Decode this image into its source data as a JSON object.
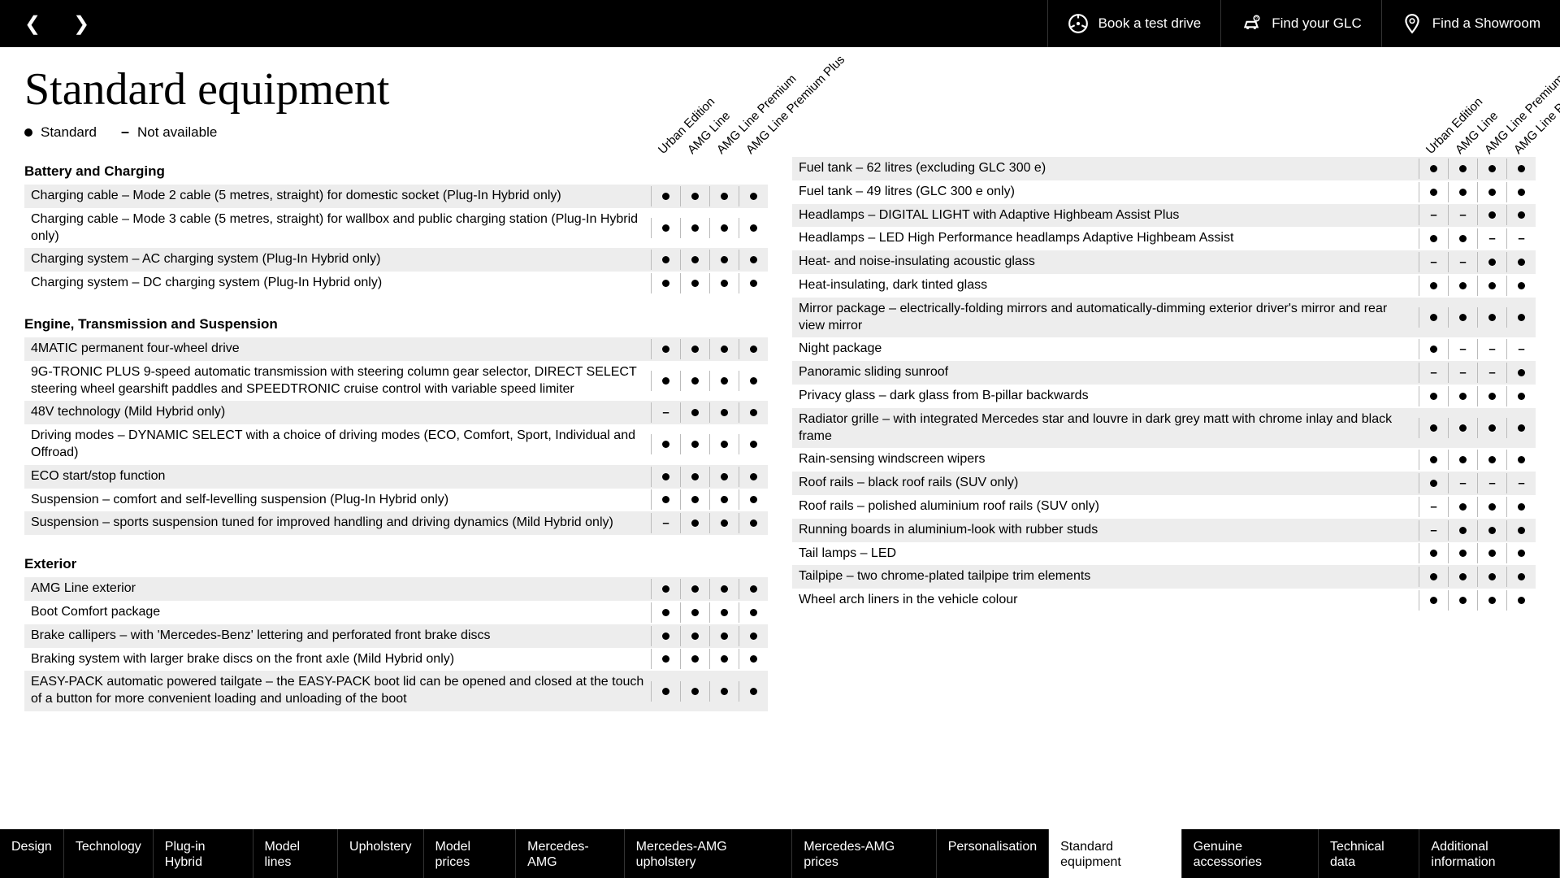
{
  "topbar": {
    "book_test_drive": "Book a test drive",
    "find_glc": "Find your GLC",
    "find_showroom": "Find a Showroom"
  },
  "title": "Standard equipment",
  "legend": {
    "standard": "Standard",
    "not_available": "Not available"
  },
  "column_headers": [
    "Urban Edition",
    "AMG Line",
    "AMG Line Premium",
    "AMG Line Premium Plus"
  ],
  "left": {
    "sec1_title": "Battery and Charging",
    "sec1_rows": [
      {
        "l": "Charging cable – Mode 2 cable (5 metres, straight) for domestic socket (Plug-In Hybrid only)",
        "v": [
          "d",
          "d",
          "d",
          "d"
        ]
      },
      {
        "l": "Charging cable – Mode 3 cable (5 metres, straight) for wallbox and public charging station (Plug-In Hybrid only)",
        "v": [
          "d",
          "d",
          "d",
          "d"
        ]
      },
      {
        "l": "Charging system – AC charging system (Plug-In Hybrid only)",
        "v": [
          "d",
          "d",
          "d",
          "d"
        ]
      },
      {
        "l": "Charging system – DC charging system (Plug-In Hybrid only)",
        "v": [
          "d",
          "d",
          "d",
          "d"
        ]
      }
    ],
    "sec2_title": "Engine, Transmission and Suspension",
    "sec2_rows": [
      {
        "l": "4MATIC permanent four-wheel drive",
        "v": [
          "d",
          "d",
          "d",
          "d"
        ]
      },
      {
        "l": "9G-TRONIC PLUS 9-speed automatic transmission with steering column gear selector, DIRECT SELECT steering wheel gearshift paddles and SPEEDTRONIC cruise control with variable speed limiter",
        "v": [
          "d",
          "d",
          "d",
          "d"
        ]
      },
      {
        "l": "48V technology (Mild Hybrid only)",
        "v": [
          "n",
          "d",
          "d",
          "d"
        ]
      },
      {
        "l": "Driving modes – DYNAMIC SELECT with a choice of driving modes (ECO, Comfort, Sport, Individual and Offroad)",
        "v": [
          "d",
          "d",
          "d",
          "d"
        ]
      },
      {
        "l": "ECO start/stop function",
        "v": [
          "d",
          "d",
          "d",
          "d"
        ]
      },
      {
        "l": "Suspension – comfort and self-levelling suspension (Plug-In Hybrid only)",
        "v": [
          "d",
          "d",
          "d",
          "d"
        ]
      },
      {
        "l": "Suspension – sports suspension tuned for improved handling and driving dynamics (Mild Hybrid only)",
        "v": [
          "n",
          "d",
          "d",
          "d"
        ]
      }
    ],
    "sec3_title": "Exterior",
    "sec3_rows": [
      {
        "l": "AMG Line exterior",
        "v": [
          "d",
          "d",
          "d",
          "d"
        ]
      },
      {
        "l": "Boot Comfort package",
        "v": [
          "d",
          "d",
          "d",
          "d"
        ]
      },
      {
        "l": "Brake callipers – with 'Mercedes-Benz' lettering and perforated front brake discs",
        "v": [
          "d",
          "d",
          "d",
          "d"
        ]
      },
      {
        "l": "Braking system with larger brake discs on the front axle (Mild Hybrid only)",
        "v": [
          "d",
          "d",
          "d",
          "d"
        ]
      },
      {
        "l": "EASY-PACK automatic powered tailgate – the EASY-PACK boot lid can be opened and closed at the touch of a button for more convenient loading and unloading of the boot",
        "v": [
          "d",
          "d",
          "d",
          "d"
        ]
      }
    ]
  },
  "right": {
    "rows": [
      {
        "l": "Fuel tank – 62 litres (excluding GLC 300 e)",
        "v": [
          "d",
          "d",
          "d",
          "d"
        ]
      },
      {
        "l": "Fuel tank – 49 litres (GLC 300 e only)",
        "v": [
          "d",
          "d",
          "d",
          "d"
        ]
      },
      {
        "l": "Headlamps – DIGITAL LIGHT with Adaptive Highbeam Assist Plus",
        "v": [
          "n",
          "n",
          "d",
          "d"
        ]
      },
      {
        "l": "Headlamps – LED High Performance headlamps Adaptive Highbeam Assist",
        "v": [
          "d",
          "d",
          "n",
          "n"
        ]
      },
      {
        "l": "Heat- and noise-insulating acoustic glass",
        "v": [
          "n",
          "n",
          "d",
          "d"
        ]
      },
      {
        "l": "Heat-insulating, dark tinted glass",
        "v": [
          "d",
          "d",
          "d",
          "d"
        ]
      },
      {
        "l": "Mirror package – electrically-folding mirrors and automatically-dimming exterior driver's mirror and rear view mirror",
        "v": [
          "d",
          "d",
          "d",
          "d"
        ]
      },
      {
        "l": "Night package",
        "v": [
          "d",
          "n",
          "n",
          "n"
        ]
      },
      {
        "l": "Panoramic sliding sunroof",
        "v": [
          "n",
          "n",
          "n",
          "d"
        ]
      },
      {
        "l": "Privacy glass – dark glass from B-pillar backwards",
        "v": [
          "d",
          "d",
          "d",
          "d"
        ]
      },
      {
        "l": "Radiator grille – with integrated Mercedes star and louvre in dark grey matt with chrome inlay and black frame",
        "v": [
          "d",
          "d",
          "d",
          "d"
        ]
      },
      {
        "l": "Rain-sensing windscreen wipers",
        "v": [
          "d",
          "d",
          "d",
          "d"
        ]
      },
      {
        "l": "Roof rails – black roof rails (SUV only)",
        "v": [
          "d",
          "n",
          "n",
          "n"
        ]
      },
      {
        "l": "Roof rails – polished aluminium roof rails (SUV only)",
        "v": [
          "n",
          "d",
          "d",
          "d"
        ]
      },
      {
        "l": "Running boards in aluminium-look with rubber studs",
        "v": [
          "n",
          "d",
          "d",
          "d"
        ]
      },
      {
        "l": "Tail lamps – LED",
        "v": [
          "d",
          "d",
          "d",
          "d"
        ]
      },
      {
        "l": "Tailpipe – two chrome-plated tailpipe trim elements",
        "v": [
          "d",
          "d",
          "d",
          "d"
        ]
      },
      {
        "l": "Wheel arch liners in the vehicle colour",
        "v": [
          "d",
          "d",
          "d",
          "d"
        ]
      }
    ]
  },
  "bottomnav": [
    {
      "l": "Design",
      "a": false
    },
    {
      "l": "Technology",
      "a": false
    },
    {
      "l": "Plug-in Hybrid",
      "a": false
    },
    {
      "l": "Model lines",
      "a": false
    },
    {
      "l": "Upholstery",
      "a": false
    },
    {
      "l": "Model prices",
      "a": false
    },
    {
      "l": "Mercedes-AMG",
      "a": false
    },
    {
      "l": "Mercedes-AMG upholstery",
      "a": false
    },
    {
      "l": "Mercedes-AMG prices",
      "a": false
    },
    {
      "l": "Personalisation",
      "a": false
    },
    {
      "l": "Standard equipment",
      "a": true
    },
    {
      "l": "Genuine accessories",
      "a": false
    },
    {
      "l": "Technical data",
      "a": false
    },
    {
      "l": "Additional information",
      "a": false
    }
  ]
}
